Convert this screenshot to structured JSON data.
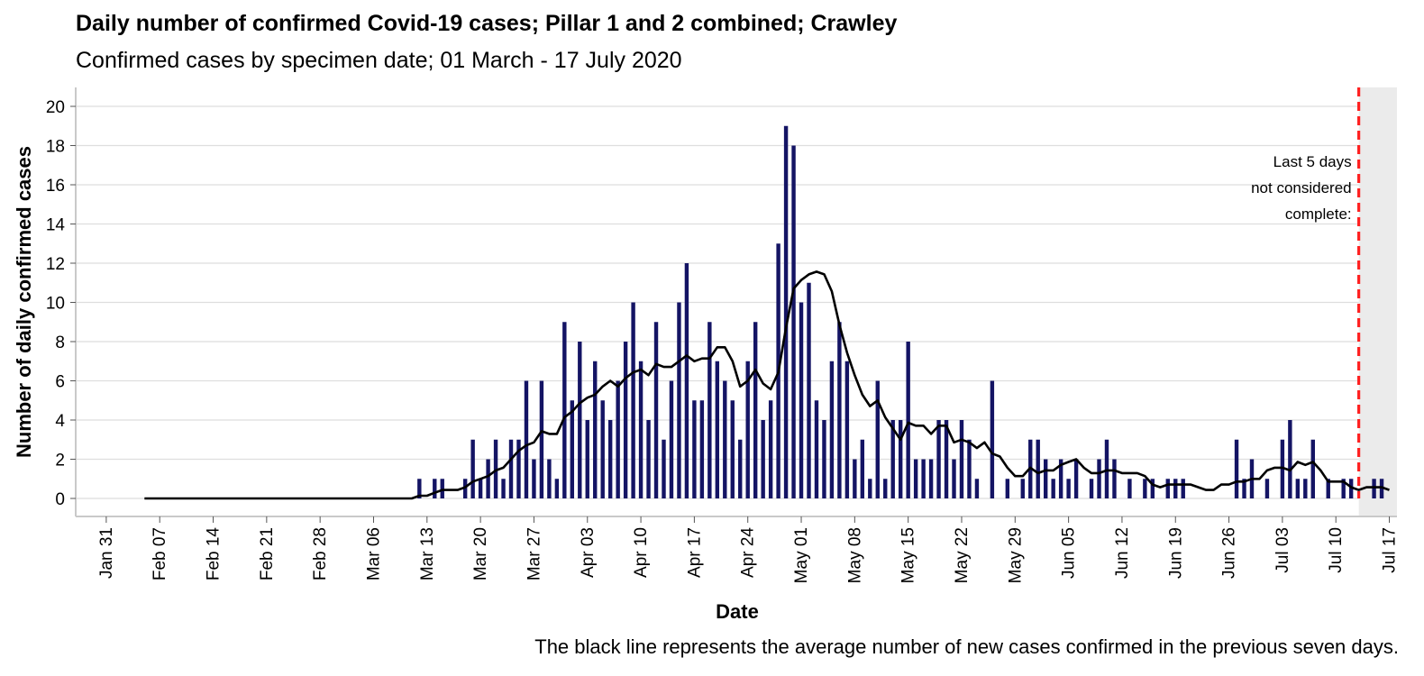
{
  "chart_data": {
    "type": "bar",
    "title": "Daily number of confirmed Covid-19 cases; Pillar 1 and 2 combined; Crawley",
    "subtitle": "Confirmed cases by specimen date; 01 March - 17 July 2020",
    "xlabel": "Date",
    "ylabel": "Number of daily confirmed cases",
    "caption": "The black line represents the average number of new cases confirmed in the previous seven days.",
    "ylim": [
      0,
      21
    ],
    "yticks": [
      0,
      2,
      4,
      6,
      8,
      10,
      12,
      14,
      16,
      18,
      20
    ],
    "xlim": [
      "2020-01-27",
      "2020-07-18"
    ],
    "xtick_labels": [
      "Jan 31",
      "Feb 07",
      "Feb 14",
      "Feb 21",
      "Feb 28",
      "Mar 06",
      "Mar 13",
      "Mar 20",
      "Mar 27",
      "Apr 03",
      "Apr 10",
      "Apr 17",
      "Apr 24",
      "May 01",
      "May 08",
      "May 15",
      "May 22",
      "May 29",
      "Jun 05",
      "Jun 12",
      "Jun 19",
      "Jun 26",
      "Jul 03",
      "Jul 10",
      "Jul 17"
    ],
    "xtick_dates": [
      "2020-01-31",
      "2020-02-07",
      "2020-02-14",
      "2020-02-21",
      "2020-02-28",
      "2020-03-06",
      "2020-03-13",
      "2020-03-20",
      "2020-03-27",
      "2020-04-03",
      "2020-04-10",
      "2020-04-17",
      "2020-04-24",
      "2020-05-01",
      "2020-05-08",
      "2020-05-15",
      "2020-05-22",
      "2020-05-29",
      "2020-06-05",
      "2020-06-12",
      "2020-06-19",
      "2020-06-26",
      "2020-07-03",
      "2020-07-10",
      "2020-07-17"
    ],
    "grid": true,
    "colors": {
      "bar": "#141464",
      "line": "#000000",
      "cutoff": "#ff2020",
      "shade": "#ebebeb",
      "grid": "#dedede"
    },
    "cases": {
      "name": "Daily confirmed cases",
      "dates": [
        "2020-03-11",
        "2020-03-12",
        "2020-03-13",
        "2020-03-14",
        "2020-03-15",
        "2020-03-16",
        "2020-03-17",
        "2020-03-18",
        "2020-03-19",
        "2020-03-20",
        "2020-03-21",
        "2020-03-22",
        "2020-03-23",
        "2020-03-24",
        "2020-03-25",
        "2020-03-26",
        "2020-03-27",
        "2020-03-28",
        "2020-03-29",
        "2020-03-30",
        "2020-03-31",
        "2020-04-01",
        "2020-04-02",
        "2020-04-03",
        "2020-04-04",
        "2020-04-05",
        "2020-04-06",
        "2020-04-07",
        "2020-04-08",
        "2020-04-09",
        "2020-04-10",
        "2020-04-11",
        "2020-04-12",
        "2020-04-13",
        "2020-04-14",
        "2020-04-15",
        "2020-04-16",
        "2020-04-17",
        "2020-04-18",
        "2020-04-19",
        "2020-04-20",
        "2020-04-21",
        "2020-04-22",
        "2020-04-23",
        "2020-04-24",
        "2020-04-25",
        "2020-04-26",
        "2020-04-27",
        "2020-04-28",
        "2020-04-29",
        "2020-04-30",
        "2020-05-01",
        "2020-05-02",
        "2020-05-03",
        "2020-05-04",
        "2020-05-05",
        "2020-05-06",
        "2020-05-07",
        "2020-05-08",
        "2020-05-09",
        "2020-05-10",
        "2020-05-11",
        "2020-05-12",
        "2020-05-13",
        "2020-05-14",
        "2020-05-15",
        "2020-05-16",
        "2020-05-17",
        "2020-05-18",
        "2020-05-19",
        "2020-05-20",
        "2020-05-21",
        "2020-05-22",
        "2020-05-23",
        "2020-05-24",
        "2020-05-25",
        "2020-05-26",
        "2020-05-27",
        "2020-05-28",
        "2020-05-29",
        "2020-05-30",
        "2020-05-31",
        "2020-06-01",
        "2020-06-02",
        "2020-06-03",
        "2020-06-04",
        "2020-06-05",
        "2020-06-06",
        "2020-06-07",
        "2020-06-08",
        "2020-06-09",
        "2020-06-10",
        "2020-06-11",
        "2020-06-12",
        "2020-06-13",
        "2020-06-14",
        "2020-06-15",
        "2020-06-16",
        "2020-06-17",
        "2020-06-18",
        "2020-06-19",
        "2020-06-20",
        "2020-06-21",
        "2020-06-22",
        "2020-06-23",
        "2020-06-24",
        "2020-06-25",
        "2020-06-26",
        "2020-06-27",
        "2020-06-28",
        "2020-06-29",
        "2020-06-30",
        "2020-07-01",
        "2020-07-02",
        "2020-07-03",
        "2020-07-04",
        "2020-07-05",
        "2020-07-06",
        "2020-07-07",
        "2020-07-08",
        "2020-07-09",
        "2020-07-10",
        "2020-07-11",
        "2020-07-12",
        "2020-07-13",
        "2020-07-14",
        "2020-07-15",
        "2020-07-16",
        "2020-07-17"
      ],
      "values": [
        0,
        1,
        0,
        1,
        1,
        0,
        0,
        1,
        3,
        1,
        2,
        3,
        1,
        3,
        3,
        6,
        2,
        6,
        2,
        1,
        9,
        5,
        8,
        4,
        7,
        5,
        4,
        6,
        8,
        10,
        7,
        4,
        9,
        3,
        6,
        10,
        12,
        5,
        5,
        9,
        7,
        6,
        5,
        3,
        7,
        9,
        4,
        5,
        13,
        19,
        18,
        10,
        11,
        5,
        4,
        7,
        9,
        7,
        2,
        3,
        1,
        6,
        1,
        4,
        4,
        8,
        2,
        2,
        2,
        4,
        4,
        2,
        4,
        3,
        1,
        0,
        6,
        0,
        1,
        0,
        1,
        3,
        3,
        2,
        1,
        2,
        1,
        2,
        0,
        1,
        2,
        3,
        2,
        0,
        1,
        0,
        1,
        1,
        0,
        1,
        1,
        1,
        0,
        0,
        0,
        0,
        0,
        0,
        3,
        1,
        2,
        0,
        1,
        0,
        3,
        4,
        1,
        1,
        3,
        0,
        1,
        0,
        1,
        1,
        0,
        0,
        1,
        1,
        0
      ]
    },
    "average": {
      "dates": [
        "2020-02-05",
        "2020-03-10",
        "2020-03-11",
        "2020-03-12",
        "2020-03-13",
        "2020-03-14",
        "2020-03-15",
        "2020-03-16",
        "2020-03-17",
        "2020-03-18",
        "2020-03-19",
        "2020-03-20",
        "2020-03-21",
        "2020-03-22",
        "2020-03-23",
        "2020-03-24",
        "2020-03-25",
        "2020-03-26",
        "2020-03-27",
        "2020-03-28",
        "2020-03-29",
        "2020-03-30",
        "2020-03-31",
        "2020-04-01",
        "2020-04-02",
        "2020-04-03",
        "2020-04-04",
        "2020-04-05",
        "2020-04-06",
        "2020-04-07",
        "2020-04-08",
        "2020-04-09",
        "2020-04-10",
        "2020-04-11",
        "2020-04-12",
        "2020-04-13",
        "2020-04-14",
        "2020-04-15",
        "2020-04-16",
        "2020-04-17",
        "2020-04-18",
        "2020-04-19",
        "2020-04-20",
        "2020-04-21",
        "2020-04-22",
        "2020-04-23",
        "2020-04-24",
        "2020-04-25",
        "2020-04-26",
        "2020-04-27",
        "2020-04-28",
        "2020-04-29",
        "2020-04-30",
        "2020-05-01",
        "2020-05-02",
        "2020-05-03",
        "2020-05-04",
        "2020-05-05",
        "2020-05-06",
        "2020-05-07",
        "2020-05-08",
        "2020-05-09",
        "2020-05-10",
        "2020-05-11",
        "2020-05-12",
        "2020-05-13",
        "2020-05-14",
        "2020-05-15",
        "2020-05-16",
        "2020-05-17",
        "2020-05-18",
        "2020-05-19",
        "2020-05-20",
        "2020-05-21",
        "2020-05-22",
        "2020-05-23",
        "2020-05-24",
        "2020-05-25",
        "2020-05-26",
        "2020-05-27",
        "2020-05-28",
        "2020-05-29",
        "2020-05-30",
        "2020-05-31",
        "2020-06-01",
        "2020-06-02",
        "2020-06-03",
        "2020-06-04",
        "2020-06-05",
        "2020-06-06",
        "2020-06-07",
        "2020-06-08",
        "2020-06-09",
        "2020-06-10",
        "2020-06-11",
        "2020-06-12",
        "2020-06-13",
        "2020-06-14",
        "2020-06-15",
        "2020-06-16",
        "2020-06-17",
        "2020-06-18",
        "2020-06-19",
        "2020-06-20",
        "2020-06-21",
        "2020-06-22",
        "2020-06-23",
        "2020-06-24",
        "2020-06-25",
        "2020-06-26",
        "2020-06-27",
        "2020-06-28",
        "2020-06-29",
        "2020-06-30",
        "2020-07-01",
        "2020-07-02",
        "2020-07-03",
        "2020-07-04",
        "2020-07-05",
        "2020-07-06",
        "2020-07-07",
        "2020-07-08",
        "2020-07-09",
        "2020-07-10",
        "2020-07-11",
        "2020-07-12",
        "2020-07-13",
        "2020-07-14",
        "2020-07-15",
        "2020-07-16",
        "2020-07-17"
      ],
      "values": [
        0,
        0,
        0,
        0.14,
        0.14,
        0.29,
        0.43,
        0.43,
        0.43,
        0.57,
        0.86,
        1.0,
        1.14,
        1.43,
        1.57,
        2.0,
        2.43,
        2.71,
        2.86,
        3.43,
        3.29,
        3.29,
        4.14,
        4.43,
        4.86,
        5.14,
        5.29,
        5.71,
        6.0,
        5.71,
        6.14,
        6.43,
        6.57,
        6.29,
        6.86,
        6.71,
        6.71,
        7.0,
        7.29,
        7.0,
        7.14,
        7.14,
        7.71,
        7.71,
        7.0,
        5.71,
        6.0,
        6.57,
        5.86,
        5.57,
        6.43,
        8.71,
        10.71,
        11.14,
        11.43,
        11.57,
        11.43,
        10.57,
        8.86,
        7.43,
        6.29,
        5.29,
        4.71,
        5.0,
        4.14,
        3.57,
        3.0,
        3.86,
        3.71,
        3.71,
        3.29,
        3.71,
        3.71,
        2.86,
        3.0,
        2.86,
        2.57,
        2.86,
        2.29,
        2.14,
        1.57,
        1.14,
        1.14,
        1.57,
        1.29,
        1.43,
        1.43,
        1.71,
        1.86,
        2.0,
        1.57,
        1.29,
        1.29,
        1.43,
        1.43,
        1.29,
        1.29,
        1.29,
        1.14,
        0.71,
        0.57,
        0.71,
        0.71,
        0.71,
        0.71,
        0.57,
        0.43,
        0.43,
        0.71,
        0.71,
        0.86,
        0.86,
        1.0,
        1.0,
        1.43,
        1.57,
        1.57,
        1.43,
        1.86,
        1.71,
        1.86,
        1.43,
        0.86,
        0.86,
        0.86,
        0.57,
        0.43,
        0.57,
        0.57,
        0.57,
        0.43
      ]
    },
    "cutoff": {
      "date": "2020-07-13",
      "annotation_lines": [
        "Last 5 days",
        "not considered",
        "complete:"
      ]
    }
  }
}
